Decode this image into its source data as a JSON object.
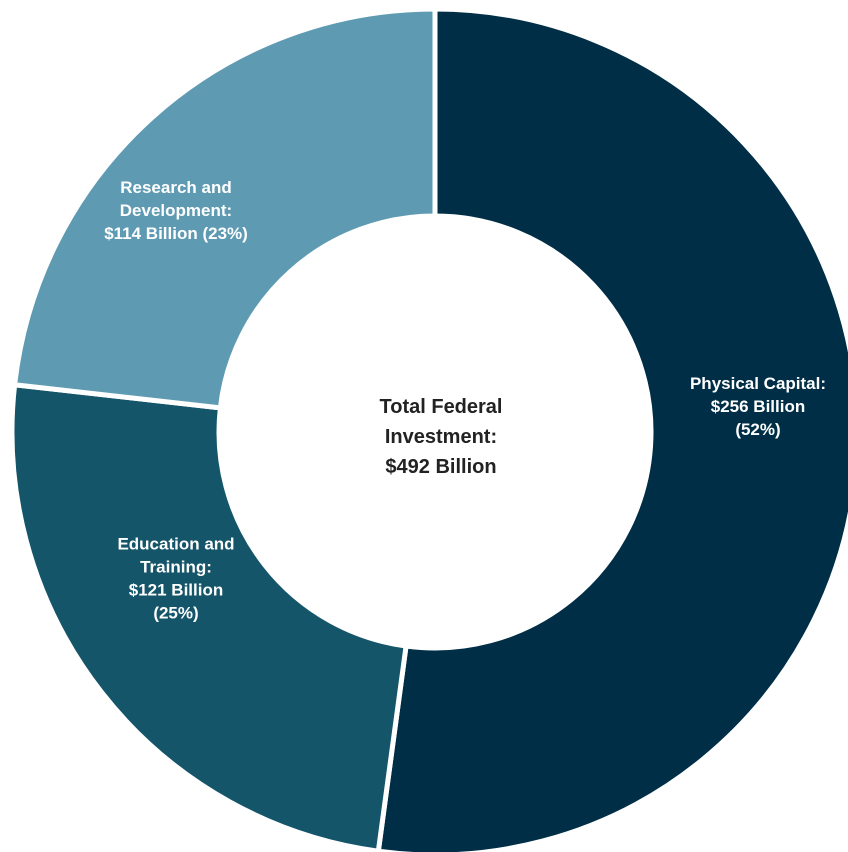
{
  "chart_data": {
    "type": "pie",
    "center_label": {
      "lines": [
        "Total Federal",
        "Investment:",
        "$492 Billion"
      ]
    },
    "slices": [
      {
        "name": "Physical Capital",
        "value": 256,
        "percent": 52,
        "color": "#002e46",
        "label_lines": [
          "Physical Capital:",
          "$256 Billion",
          "(52%)"
        ]
      },
      {
        "name": "Education and Training",
        "value": 121,
        "percent": 25,
        "color": "#14556a",
        "label_lines": [
          "Education and",
          "Training:",
          "$121 Billion",
          "(25%)"
        ]
      },
      {
        "name": "Research and Development",
        "value": 114,
        "percent": 23,
        "color": "#5e9bb3",
        "label_lines": [
          "Research and",
          "Development:",
          "$114 Billion (23%)"
        ]
      }
    ]
  }
}
